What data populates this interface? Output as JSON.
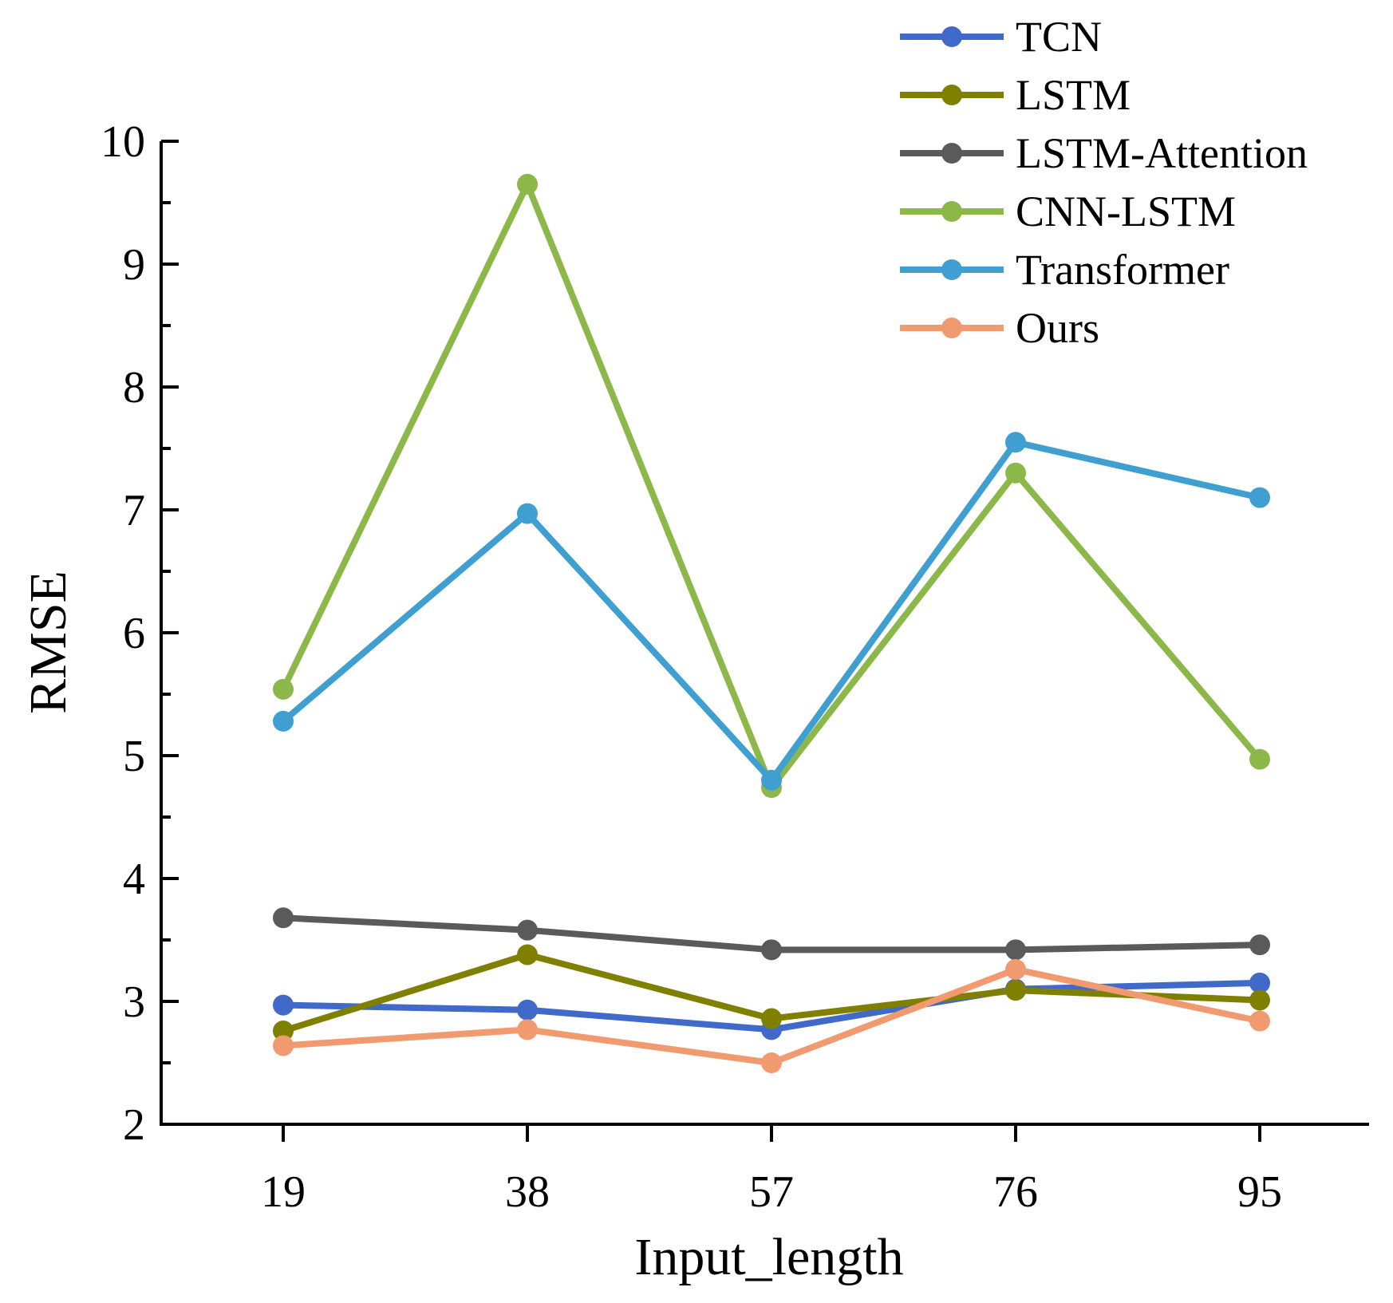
{
  "chart_data": {
    "type": "line",
    "xlabel": "Input_length",
    "ylabel": "RMSE",
    "categories": [
      "19",
      "38",
      "57",
      "76",
      "95"
    ],
    "ylim": [
      2,
      10
    ],
    "yticks": [
      "2",
      "3",
      "4",
      "5",
      "6",
      "7",
      "8",
      "9",
      "10"
    ],
    "grid": false,
    "legend_position": "top-right",
    "series": [
      {
        "name": "TCN",
        "color": "#4169c9",
        "values": [
          2.97,
          2.93,
          2.77,
          3.1,
          3.15
        ]
      },
      {
        "name": "LSTM",
        "color": "#808000",
        "values": [
          2.76,
          3.38,
          2.86,
          3.09,
          3.01
        ]
      },
      {
        "name": "LSTM-Attention",
        "color": "#5a5a5a",
        "values": [
          3.68,
          3.58,
          3.42,
          3.42,
          3.46
        ]
      },
      {
        "name": "CNN-LSTM",
        "color": "#8cb84a",
        "values": [
          5.54,
          9.65,
          4.74,
          7.3,
          4.97
        ]
      },
      {
        "name": "Transformer",
        "color": "#3f9fd0",
        "values": [
          5.28,
          6.97,
          4.8,
          7.55,
          7.1
        ]
      },
      {
        "name": "Ours",
        "color": "#f19a70",
        "values": [
          2.64,
          2.77,
          2.5,
          3.26,
          2.84
        ]
      }
    ]
  }
}
